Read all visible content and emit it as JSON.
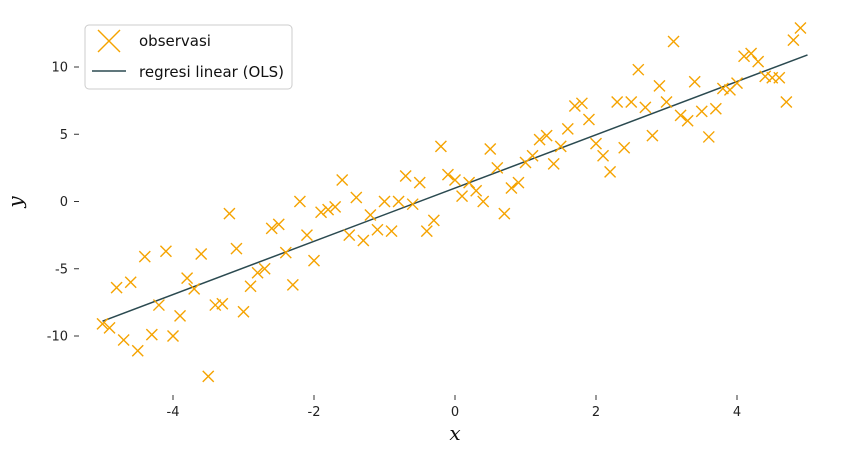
{
  "chart_data": {
    "type": "scatter",
    "xlabel": "x",
    "ylabel": "y",
    "xlim": [
      -5.3,
      5.3
    ],
    "ylim": [
      -14.2,
      13.5
    ],
    "xticks": [
      -4,
      -2,
      0,
      2,
      4
    ],
    "yticks": [
      -10,
      -5,
      0,
      5,
      10
    ],
    "xtick_labels": [
      "-4",
      "-2",
      "0",
      "2",
      "4"
    ],
    "ytick_labels": [
      "-10",
      "-5",
      "0",
      "5",
      "10"
    ],
    "grid": false,
    "legend_position": "top-left",
    "legend": [
      {
        "label": "observasi",
        "marker": "x",
        "color": "#f5a300"
      },
      {
        "label": "regresi linear (OLS)",
        "marker": "line",
        "color": "#2b4a50"
      }
    ],
    "colors": {
      "points": "#f5a300",
      "line": "#2b4a50"
    },
    "series": [
      {
        "name": "observasi",
        "kind": "scatter",
        "points": [
          [
            -5.0,
            -9.1
          ],
          [
            -4.9,
            -9.4
          ],
          [
            -4.8,
            -6.4
          ],
          [
            -4.7,
            -10.3
          ],
          [
            -4.6,
            -6.0
          ],
          [
            -4.5,
            -11.1
          ],
          [
            -4.4,
            -4.1
          ],
          [
            -4.3,
            -9.9
          ],
          [
            -4.2,
            -7.7
          ],
          [
            -4.1,
            -3.7
          ],
          [
            -4.0,
            -10.0
          ],
          [
            -3.9,
            -8.5
          ],
          [
            -3.8,
            -5.7
          ],
          [
            -3.7,
            -6.5
          ],
          [
            -3.6,
            -3.9
          ],
          [
            -3.5,
            -13.0
          ],
          [
            -3.4,
            -7.7
          ],
          [
            -3.3,
            -7.6
          ],
          [
            -3.2,
            -0.9
          ],
          [
            -3.1,
            -3.5
          ],
          [
            -3.0,
            -8.2
          ],
          [
            -2.9,
            -6.3
          ],
          [
            -2.8,
            -5.3
          ],
          [
            -2.7,
            -5.0
          ],
          [
            -2.6,
            -2.0
          ],
          [
            -2.5,
            -1.7
          ],
          [
            -2.4,
            -3.8
          ],
          [
            -2.3,
            -6.2
          ],
          [
            -2.2,
            0.0
          ],
          [
            -2.1,
            -2.5
          ],
          [
            -2.0,
            -4.4
          ],
          [
            -1.9,
            -0.8
          ],
          [
            -1.8,
            -0.6
          ],
          [
            -1.7,
            -0.4
          ],
          [
            -1.6,
            1.6
          ],
          [
            -1.5,
            -2.5
          ],
          [
            -1.4,
            0.3
          ],
          [
            -1.3,
            -2.9
          ],
          [
            -1.2,
            -1.0
          ],
          [
            -1.1,
            -2.1
          ],
          [
            -1.0,
            0.0
          ],
          [
            -0.9,
            -2.2
          ],
          [
            -0.8,
            0.0
          ],
          [
            -0.7,
            1.9
          ],
          [
            -0.6,
            -0.2
          ],
          [
            -0.5,
            1.4
          ],
          [
            -0.4,
            -2.2
          ],
          [
            -0.3,
            -1.4
          ],
          [
            -0.2,
            4.1
          ],
          [
            -0.1,
            2.0
          ],
          [
            0.0,
            1.6
          ],
          [
            0.1,
            0.4
          ],
          [
            0.2,
            1.4
          ],
          [
            0.3,
            0.8
          ],
          [
            0.4,
            0.0
          ],
          [
            0.5,
            3.9
          ],
          [
            0.6,
            2.5
          ],
          [
            0.7,
            -0.9
          ],
          [
            0.8,
            1.0
          ],
          [
            0.9,
            1.4
          ],
          [
            1.0,
            2.9
          ],
          [
            1.1,
            3.4
          ],
          [
            1.2,
            4.6
          ],
          [
            1.3,
            4.9
          ],
          [
            1.4,
            2.8
          ],
          [
            1.5,
            4.1
          ],
          [
            1.6,
            5.4
          ],
          [
            1.7,
            7.1
          ],
          [
            1.8,
            7.3
          ],
          [
            1.9,
            6.1
          ],
          [
            2.0,
            4.3
          ],
          [
            2.1,
            3.4
          ],
          [
            2.2,
            2.2
          ],
          [
            2.3,
            7.4
          ],
          [
            2.4,
            4.0
          ],
          [
            2.5,
            7.4
          ],
          [
            2.6,
            9.8
          ],
          [
            2.7,
            7.0
          ],
          [
            2.8,
            4.9
          ],
          [
            2.9,
            8.6
          ],
          [
            3.0,
            7.4
          ],
          [
            3.1,
            11.9
          ],
          [
            3.2,
            6.4
          ],
          [
            3.3,
            6.0
          ],
          [
            3.4,
            8.9
          ],
          [
            3.5,
            6.7
          ],
          [
            3.6,
            4.8
          ],
          [
            3.7,
            6.9
          ],
          [
            3.8,
            8.4
          ],
          [
            3.9,
            8.3
          ],
          [
            4.0,
            8.8
          ],
          [
            4.1,
            10.8
          ],
          [
            4.2,
            11.0
          ],
          [
            4.3,
            10.4
          ],
          [
            4.4,
            9.3
          ],
          [
            4.5,
            9.2
          ],
          [
            4.6,
            9.2
          ],
          [
            4.7,
            7.4
          ],
          [
            4.8,
            12.0
          ],
          [
            4.9,
            12.9
          ]
        ]
      },
      {
        "name": "regresi linear (OLS)",
        "kind": "line",
        "points": [
          [
            -5.0,
            -8.9
          ],
          [
            5.0,
            10.9
          ]
        ]
      }
    ]
  }
}
